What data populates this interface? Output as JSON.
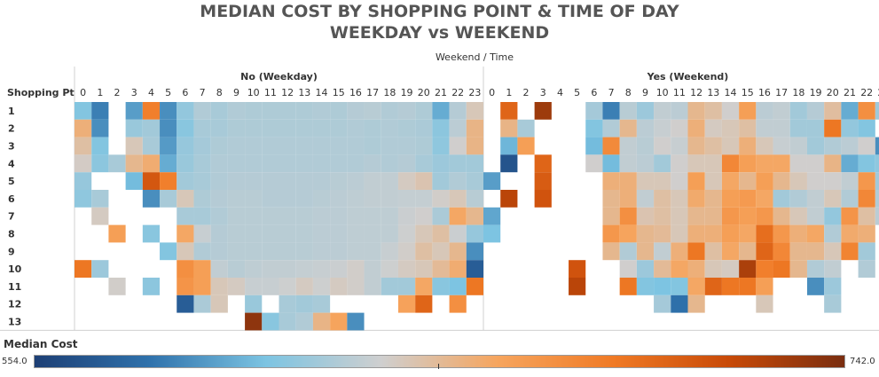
{
  "title_line1": "MEDIAN COST BY SHOPPING POINT & TIME OF DAY",
  "title_line2": "WEEKDAY vs WEEKEND",
  "column_header": "Weekend  /  Time",
  "row_header": "Shopping Pt",
  "legend": {
    "title": "Median Cost",
    "min_label": "554.0",
    "max_label": "742.0"
  },
  "chart_data": {
    "type": "heatmap",
    "title": "MEDIAN COST BY SHOPPING POINT & TIME OF DAY",
    "subtitle": "WEEKDAY vs WEEKEND",
    "x_header": "Weekend  /  Time",
    "y_header": "Shopping Pt",
    "value_label": "Median Cost",
    "value_range": [
      554.0,
      742.0
    ],
    "color_scale": [
      "#1d3f75",
      "#2f72ac",
      "#7cc4e2",
      "#cfcfcf",
      "#f6a55e",
      "#f07a25",
      "#c84a08",
      "#7a2e10"
    ],
    "rows": [
      "1",
      "2",
      "3",
      "4",
      "5",
      "6",
      "7",
      "8",
      "9",
      "10",
      "11",
      "12",
      "13"
    ],
    "hours": [
      "0",
      "1",
      "2",
      "3",
      "4",
      "5",
      "6",
      "7",
      "8",
      "9",
      "10",
      "11",
      "12",
      "13",
      "14",
      "15",
      "16",
      "17",
      "18",
      "19",
      "20",
      "21",
      "22",
      "23"
    ],
    "panels": [
      {
        "name": "No (Weekday)",
        "values": [
          [
            610,
            585,
            null,
            595,
            685,
            590,
            615,
            625,
            622,
            625,
            624,
            624,
            624,
            624,
            625,
            624,
            626,
            627,
            625,
            626,
            624,
            600,
            626,
            640
          ],
          [
            655,
            590,
            null,
            617,
            620,
            590,
            612,
            622,
            622,
            624,
            624,
            624,
            624,
            624,
            624,
            624,
            625,
            624,
            625,
            624,
            623,
            613,
            628,
            652
          ],
          [
            645,
            610,
            null,
            640,
            622,
            594,
            616,
            621,
            624,
            625,
            625,
            625,
            625,
            625,
            625,
            625,
            625,
            624,
            625,
            625,
            624,
            614,
            635,
            652
          ],
          [
            637,
            613,
            622,
            650,
            657,
            600,
            617,
            622,
            625,
            625,
            625,
            625,
            625,
            625,
            625,
            625,
            625,
            626,
            625,
            626,
            622,
            618,
            620,
            620
          ],
          [
            616,
            null,
            null,
            605,
            708,
            685,
            620,
            622,
            625,
            626,
            626,
            626,
            626,
            626,
            626,
            627,
            628,
            630,
            630,
            638,
            642,
            620,
            625,
            622
          ],
          [
            614,
            622,
            null,
            null,
            590,
            622,
            640,
            624,
            626,
            627,
            627,
            626,
            626,
            626,
            627,
            628,
            629,
            630,
            630,
            631,
            631,
            636,
            640,
            627
          ],
          [
            null,
            638,
            null,
            null,
            null,
            null,
            622,
            622,
            625,
            627,
            627,
            627,
            627,
            627,
            628,
            628,
            629,
            629,
            629,
            633,
            635,
            623,
            660,
            650
          ],
          [
            null,
            null,
            665,
            null,
            612,
            null,
            660,
            632,
            626,
            627,
            627,
            627,
            627,
            627,
            628,
            628,
            629,
            629,
            629,
            634,
            640,
            645,
            633,
            616
          ],
          [
            null,
            null,
            null,
            null,
            null,
            610,
            640,
            625,
            626,
            627,
            627,
            627,
            627,
            627,
            628,
            628,
            629,
            629,
            632,
            636,
            645,
            640,
            650,
            590
          ],
          [
            690,
            618,
            null,
            null,
            null,
            null,
            675,
            665,
            630,
            627,
            629,
            630,
            630,
            631,
            632,
            633,
            636,
            630,
            634,
            638,
            640,
            648,
            657,
            570
          ],
          [
            null,
            null,
            636,
            null,
            613,
            null,
            672,
            665,
            640,
            638,
            632,
            632,
            634,
            638,
            634,
            638,
            636,
            630,
            620,
            620,
            660,
            612,
            608,
            690
          ],
          [
            null,
            null,
            null,
            null,
            null,
            null,
            570,
            623,
            640,
            null,
            617,
            null,
            622,
            620,
            622,
            null,
            null,
            null,
            null,
            663,
            700,
            null,
            675,
            null
          ],
          [
            null,
            null,
            null,
            null,
            null,
            null,
            null,
            null,
            null,
            null,
            735,
            612,
            622,
            625,
            652,
            662,
            590,
            null,
            null,
            null,
            null,
            null,
            null,
            null
          ]
        ]
      },
      {
        "name": "Yes (Weekend)",
        "values": [
          [
            null,
            700,
            null,
            730,
            null,
            null,
            621,
            585,
            627,
            618,
            630,
            628,
            650,
            645,
            635,
            665,
            628,
            630,
            620,
            626,
            646,
            600,
            675,
            619
          ],
          [
            null,
            652,
            622,
            null,
            null,
            null,
            610,
            625,
            650,
            628,
            632,
            635,
            655,
            638,
            640,
            645,
            630,
            630,
            620,
            620,
            690,
            615,
            610,
            null
          ],
          [
            null,
            603,
            665,
            null,
            null,
            null,
            605,
            678,
            630,
            627,
            635,
            632,
            650,
            645,
            640,
            655,
            640,
            632,
            630,
            620,
            625,
            628,
            635,
            590
          ],
          [
            null,
            565,
            null,
            700,
            null,
            null,
            635,
            605,
            630,
            628,
            620,
            635,
            640,
            640,
            680,
            665,
            660,
            660,
            635,
            635,
            652,
            600,
            610,
            614
          ],
          [
            595,
            null,
            null,
            705,
            null,
            null,
            null,
            655,
            655,
            640,
            640,
            635,
            665,
            640,
            660,
            650,
            665,
            650,
            640,
            635,
            635,
            630,
            670,
            620
          ],
          [
            null,
            720,
            null,
            710,
            null,
            null,
            null,
            650,
            655,
            630,
            645,
            640,
            658,
            650,
            665,
            668,
            660,
            620,
            625,
            630,
            640,
            625,
            680,
            625
          ],
          [
            598,
            null,
            null,
            null,
            null,
            null,
            null,
            650,
            675,
            642,
            645,
            640,
            650,
            650,
            670,
            665,
            670,
            650,
            640,
            630,
            615,
            672,
            645,
            628
          ],
          [
            608,
            null,
            null,
            null,
            null,
            null,
            null,
            670,
            662,
            650,
            648,
            640,
            655,
            655,
            665,
            660,
            695,
            670,
            655,
            660,
            625,
            658,
            655,
            null
          ],
          [
            null,
            null,
            null,
            null,
            null,
            null,
            null,
            650,
            625,
            650,
            630,
            655,
            690,
            645,
            660,
            650,
            700,
            680,
            650,
            650,
            640,
            682,
            620,
            null
          ],
          [
            null,
            null,
            null,
            null,
            null,
            710,
            null,
            null,
            635,
            618,
            648,
            660,
            655,
            640,
            638,
            725,
            685,
            690,
            650,
            625,
            630,
            null,
            625,
            null
          ],
          [
            null,
            null,
            null,
            null,
            null,
            720,
            null,
            null,
            690,
            610,
            608,
            610,
            660,
            700,
            690,
            690,
            665,
            null,
            null,
            590,
            618,
            null,
            null,
            null
          ],
          [
            null,
            null,
            null,
            null,
            null,
            null,
            null,
            null,
            null,
            null,
            621,
            580,
            650,
            null,
            null,
            null,
            640,
            null,
            null,
            null,
            622,
            null,
            null,
            null
          ],
          [
            null,
            null,
            null,
            null,
            null,
            null,
            null,
            null,
            null,
            null,
            null,
            null,
            null,
            null,
            null,
            null,
            null,
            null,
            null,
            null,
            null,
            null,
            null,
            null
          ]
        ]
      }
    ]
  }
}
